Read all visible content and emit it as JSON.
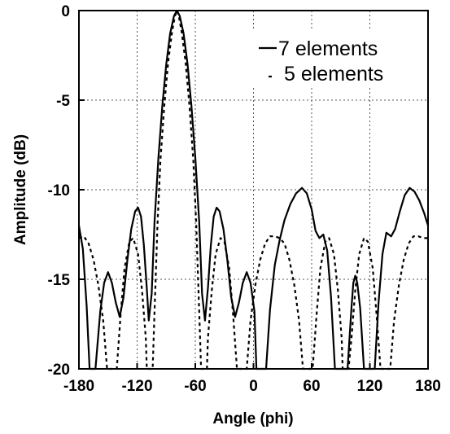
{
  "chart_data": {
    "type": "line",
    "title": "",
    "xlabel": "Angle (phi)",
    "ylabel": "Amplitude (dB)",
    "xlim": [
      -180,
      180
    ],
    "ylim": [
      -20,
      0
    ],
    "xticks": [
      -180,
      -120,
      -60,
      0,
      60,
      120,
      180
    ],
    "yticks": [
      0,
      -5,
      -10,
      -15,
      -20
    ],
    "grid": true,
    "legend_position": "top-right",
    "series": [
      {
        "name": "7 elements",
        "line_style": "solid",
        "color": "#000000",
        "points": [
          [
            -180,
            -12.0
          ],
          [
            -176,
            -13.3
          ],
          [
            -172,
            -16.5
          ],
          [
            -169,
            -20
          ],
          [
            -163,
            -20
          ],
          [
            -158,
            -16.8
          ],
          [
            -154,
            -15.2
          ],
          [
            -150,
            -14.6
          ],
          [
            -146,
            -15.2
          ],
          [
            -142,
            -16.3
          ],
          [
            -138,
            -17.1
          ],
          [
            -134,
            -16.0
          ],
          [
            -130,
            -13.9
          ],
          [
            -126,
            -12.2
          ],
          [
            -122,
            -11.2
          ],
          [
            -119,
            -11.0
          ],
          [
            -116,
            -11.5
          ],
          [
            -113,
            -13.1
          ],
          [
            -110,
            -15.5
          ],
          [
            -108,
            -17.3
          ],
          [
            -105,
            -15.8
          ],
          [
            -102,
            -11.8
          ],
          [
            -98,
            -8.2
          ],
          [
            -94,
            -5.3
          ],
          [
            -90,
            -3.0
          ],
          [
            -86,
            -1.3
          ],
          [
            -82,
            -0.3
          ],
          [
            -79,
            0
          ],
          [
            -76,
            -0.3
          ],
          [
            -72,
            -1.3
          ],
          [
            -68,
            -3.0
          ],
          [
            -64,
            -5.3
          ],
          [
            -60,
            -8.2
          ],
          [
            -56,
            -11.8
          ],
          [
            -53,
            -15.8
          ],
          [
            -50,
            -17.3
          ],
          [
            -47,
            -15.5
          ],
          [
            -44,
            -13.1
          ],
          [
            -41,
            -11.5
          ],
          [
            -38,
            -11.0
          ],
          [
            -35,
            -11.2
          ],
          [
            -31,
            -12.2
          ],
          [
            -27,
            -13.9
          ],
          [
            -23,
            -16.0
          ],
          [
            -19,
            -17.1
          ],
          [
            -15,
            -16.3
          ],
          [
            -11,
            -15.2
          ],
          [
            -7,
            -14.6
          ],
          [
            -3,
            -15.2
          ],
          [
            1,
            -16.8
          ],
          [
            3,
            -20
          ],
          [
            13,
            -20
          ],
          [
            17,
            -16.7
          ],
          [
            22,
            -14.2
          ],
          [
            27,
            -12.8
          ],
          [
            32,
            -11.7
          ],
          [
            38,
            -10.8
          ],
          [
            44,
            -10.2
          ],
          [
            50,
            -9.9
          ],
          [
            55,
            -10.2
          ],
          [
            60,
            -11.1
          ],
          [
            64,
            -12.3
          ],
          [
            68,
            -12.7
          ],
          [
            72,
            -12.5
          ],
          [
            76,
            -13.4
          ],
          [
            80,
            -16.0
          ],
          [
            84,
            -20
          ],
          [
            97,
            -20
          ],
          [
            101,
            -16.6
          ],
          [
            103,
            -15.2
          ],
          [
            105,
            -14.8
          ],
          [
            107,
            -15.2
          ],
          [
            110,
            -16.6
          ],
          [
            114,
            -20
          ],
          [
            125,
            -20
          ],
          [
            129,
            -16.3
          ],
          [
            133,
            -13.6
          ],
          [
            137,
            -12.4
          ],
          [
            142,
            -12.6
          ],
          [
            146,
            -12.2
          ],
          [
            151,
            -11.2
          ],
          [
            156,
            -10.3
          ],
          [
            161,
            -9.9
          ],
          [
            166,
            -10.1
          ],
          [
            171,
            -10.6
          ],
          [
            176,
            -11.3
          ],
          [
            180,
            -12.0
          ]
        ]
      },
      {
        "name": "5 elements",
        "line_style": "dashed",
        "color": "#000000",
        "points": [
          [
            -180,
            -12.7
          ],
          [
            -175,
            -12.6
          ],
          [
            -170,
            -13.0
          ],
          [
            -165,
            -13.9
          ],
          [
            -160,
            -15.3
          ],
          [
            -155,
            -17.3
          ],
          [
            -151,
            -20
          ],
          [
            -141,
            -20
          ],
          [
            -137,
            -17.0
          ],
          [
            -133,
            -14.4
          ],
          [
            -128,
            -12.9
          ],
          [
            -124,
            -12.7
          ],
          [
            -119,
            -13.6
          ],
          [
            -115,
            -15.6
          ],
          [
            -111,
            -18.3
          ],
          [
            -110,
            -20
          ],
          [
            -104,
            -20
          ],
          [
            -102,
            -16.8
          ],
          [
            -99,
            -12.0
          ],
          [
            -96,
            -8.4
          ],
          [
            -92,
            -5.3
          ],
          [
            -88,
            -2.9
          ],
          [
            -84,
            -1.2
          ],
          [
            -81,
            -0.3
          ],
          [
            -79,
            0
          ],
          [
            -77,
            -0.3
          ],
          [
            -74,
            -1.2
          ],
          [
            -70,
            -2.9
          ],
          [
            -66,
            -5.3
          ],
          [
            -62,
            -8.4
          ],
          [
            -59,
            -12.0
          ],
          [
            -56,
            -16.8
          ],
          [
            -54,
            -20
          ],
          [
            -48,
            -20
          ],
          [
            -47,
            -18.3
          ],
          [
            -43,
            -15.6
          ],
          [
            -39,
            -13.6
          ],
          [
            -34,
            -12.7
          ],
          [
            -30,
            -12.9
          ],
          [
            -25,
            -14.4
          ],
          [
            -21,
            -17.0
          ],
          [
            -17,
            -20
          ],
          [
            -7,
            -20
          ],
          [
            -3,
            -17.3
          ],
          [
            2,
            -15.3
          ],
          [
            7,
            -13.9
          ],
          [
            12,
            -13.0
          ],
          [
            17,
            -12.6
          ],
          [
            22,
            -12.6
          ],
          [
            27,
            -12.7
          ],
          [
            32,
            -13.0
          ],
          [
            37,
            -13.9
          ],
          [
            42,
            -15.3
          ],
          [
            47,
            -17.3
          ],
          [
            51,
            -20
          ],
          [
            61,
            -20
          ],
          [
            65,
            -17.0
          ],
          [
            69,
            -14.4
          ],
          [
            74,
            -12.9
          ],
          [
            78,
            -12.7
          ],
          [
            83,
            -13.6
          ],
          [
            87,
            -15.6
          ],
          [
            91,
            -18.3
          ],
          [
            92,
            -20
          ],
          [
            98,
            -20
          ],
          [
            101,
            -18.3
          ],
          [
            105,
            -15.6
          ],
          [
            109,
            -13.6
          ],
          [
            114,
            -12.7
          ],
          [
            118,
            -12.9
          ],
          [
            123,
            -14.4
          ],
          [
            127,
            -17.0
          ],
          [
            131,
            -20
          ],
          [
            141,
            -20
          ],
          [
            145,
            -17.3
          ],
          [
            150,
            -15.3
          ],
          [
            155,
            -13.9
          ],
          [
            160,
            -13.0
          ],
          [
            165,
            -12.6
          ],
          [
            170,
            -12.6
          ],
          [
            175,
            -12.7
          ],
          [
            180,
            -12.7
          ]
        ]
      }
    ]
  },
  "legend": {
    "items": [
      {
        "label": "7 elements",
        "style": "solid"
      },
      {
        "label": "5 elements",
        "style": "dashed"
      }
    ]
  }
}
